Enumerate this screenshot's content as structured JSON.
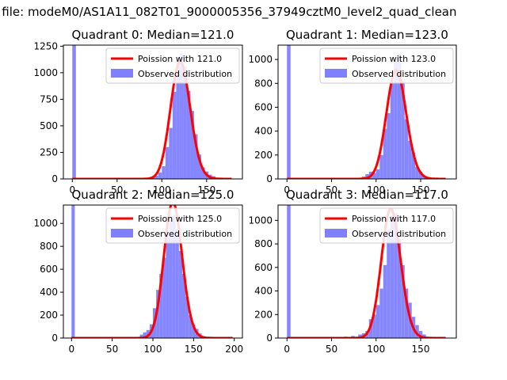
{
  "suptitle": "n file: modeM0/AS1A11_082T01_9000005356_37949cztM0_level2_quad_clean",
  "colors": {
    "poisson": "#ff0000",
    "observed": "#8080ff",
    "axes": "#000000"
  },
  "chart_data": [
    {
      "type": "bar",
      "title": "Quadrant 0: Median=121.0",
      "legend": [
        "Poission with 121.0",
        "Observed distribution"
      ],
      "legend_position": "top-right",
      "median": 121.0,
      "xlim": [
        -10,
        190
      ],
      "ylim": [
        0,
        1260
      ],
      "xticks": [
        0,
        50,
        100,
        150
      ],
      "yticks": [
        0,
        250,
        500,
        750,
        1000,
        1250
      ],
      "bin_width": 4,
      "bars": [
        [
          0,
          1260
        ],
        [
          80,
          8
        ],
        [
          84,
          12
        ],
        [
          88,
          18
        ],
        [
          92,
          30
        ],
        [
          96,
          60
        ],
        [
          100,
          120
        ],
        [
          104,
          300
        ],
        [
          108,
          480
        ],
        [
          112,
          820
        ],
        [
          116,
          1130
        ],
        [
          120,
          1180
        ],
        [
          124,
          1060
        ],
        [
          128,
          830
        ],
        [
          132,
          640
        ],
        [
          136,
          420
        ],
        [
          140,
          230
        ],
        [
          144,
          110
        ],
        [
          148,
          70
        ],
        [
          152,
          40
        ],
        [
          156,
          25
        ],
        [
          160,
          12
        ],
        [
          164,
          6
        ],
        [
          168,
          3
        ]
      ]
    },
    {
      "type": "bar",
      "title": "Quadrant 1: Median=123.0",
      "legend": [
        "Poission with 123.0",
        "Observed distribution"
      ],
      "legend_position": "top-right",
      "median": 123.0,
      "xlim": [
        -10,
        190
      ],
      "ylim": [
        0,
        1120
      ],
      "xticks": [
        0,
        50,
        100,
        150
      ],
      "yticks": [
        0,
        200,
        400,
        600,
        800,
        1000
      ],
      "bin_width": 4,
      "bars": [
        [
          0,
          1120
        ],
        [
          72,
          6
        ],
        [
          80,
          10
        ],
        [
          84,
          20
        ],
        [
          88,
          40
        ],
        [
          92,
          60
        ],
        [
          96,
          50
        ],
        [
          100,
          80
        ],
        [
          104,
          200
        ],
        [
          108,
          420
        ],
        [
          112,
          550
        ],
        [
          116,
          800
        ],
        [
          120,
          980
        ],
        [
          124,
          1050
        ],
        [
          128,
          820
        ],
        [
          132,
          500
        ],
        [
          136,
          320
        ],
        [
          140,
          220
        ],
        [
          144,
          100
        ],
        [
          148,
          60
        ],
        [
          152,
          25
        ],
        [
          156,
          10
        ]
      ]
    },
    {
      "type": "bar",
      "title": "Quadrant 2: Median=125.0",
      "legend": [
        "Poission with 125.0",
        "Observed distribution"
      ],
      "legend_position": "top-right",
      "median": 125.0,
      "xlim": [
        -10,
        210
      ],
      "ylim": [
        0,
        1160
      ],
      "xticks": [
        0,
        50,
        100,
        150,
        200
      ],
      "yticks": [
        0,
        200,
        400,
        600,
        800,
        1000
      ],
      "bin_width": 4,
      "bars": [
        [
          0,
          1160
        ],
        [
          84,
          30
        ],
        [
          88,
          50
        ],
        [
          92,
          70
        ],
        [
          96,
          120
        ],
        [
          100,
          260
        ],
        [
          104,
          420
        ],
        [
          108,
          560
        ],
        [
          112,
          700
        ],
        [
          116,
          900
        ],
        [
          120,
          1030
        ],
        [
          124,
          1070
        ],
        [
          128,
          950
        ],
        [
          132,
          760
        ],
        [
          136,
          560
        ],
        [
          140,
          360
        ],
        [
          144,
          200
        ],
        [
          148,
          120
        ],
        [
          152,
          80
        ],
        [
          156,
          40
        ],
        [
          160,
          15
        ],
        [
          164,
          8
        ]
      ]
    },
    {
      "type": "bar",
      "title": "Quadrant 3: Median=117.0",
      "legend": [
        "Poission with 117.0",
        "Observed distribution"
      ],
      "legend_position": "top-right",
      "median": 117.0,
      "xlim": [
        -10,
        190
      ],
      "ylim": [
        0,
        1130
      ],
      "xticks": [
        0,
        50,
        100,
        150
      ],
      "yticks": [
        0,
        200,
        400,
        600,
        800,
        1000
      ],
      "bin_width": 4,
      "bars": [
        [
          0,
          1130
        ],
        [
          48,
          6
        ],
        [
          56,
          8
        ],
        [
          64,
          12
        ],
        [
          72,
          18
        ],
        [
          80,
          30
        ],
        [
          84,
          40
        ],
        [
          88,
          60
        ],
        [
          92,
          160
        ],
        [
          96,
          200
        ],
        [
          100,
          280
        ],
        [
          104,
          420
        ],
        [
          108,
          620
        ],
        [
          112,
          920
        ],
        [
          116,
          1040
        ],
        [
          120,
          1060
        ],
        [
          124,
          840
        ],
        [
          128,
          620
        ],
        [
          132,
          420
        ],
        [
          136,
          300
        ],
        [
          140,
          180
        ],
        [
          144,
          110
        ],
        [
          148,
          60
        ],
        [
          152,
          30
        ]
      ]
    }
  ]
}
